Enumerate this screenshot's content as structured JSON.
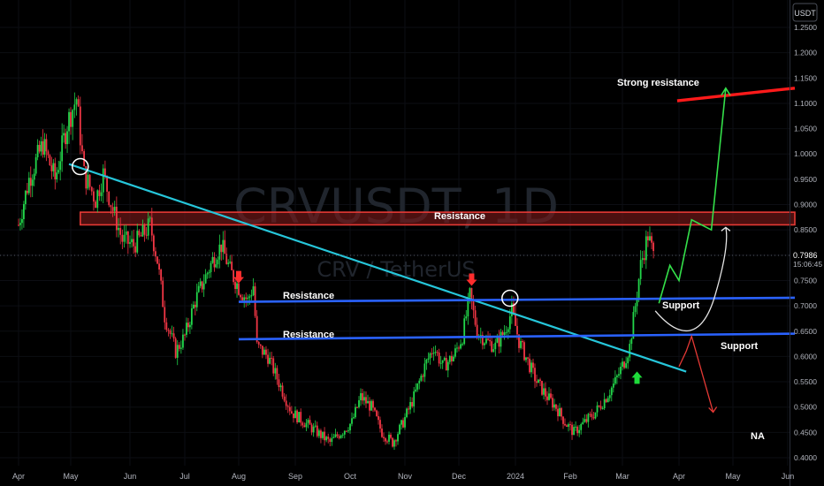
{
  "watermark": {
    "symbol": "CRVUSDT, 1D",
    "pair": "CRV / TetherUS"
  },
  "price_axis": {
    "currency_button": "USDT",
    "last_price": "0.7986",
    "countdown": "15:06:45"
  },
  "annotations": {
    "resistance_band": "Resistance",
    "resistance_upper": "Resistance",
    "resistance_lower": "Resistance",
    "strong_resistance": "Strong resistance",
    "support_upper": "Support",
    "support_lower": "Support",
    "na": "NA"
  },
  "colors": {
    "background": "#000000",
    "up_candle": "#22d64a",
    "down_candle": "#f23645",
    "trendline": "#26c6da",
    "support_line": "#2a62ff",
    "strong_resistance": "#ff1a1a",
    "resistance_zone": "#c62828",
    "axis_text": "#b2b5be"
  },
  "chart_data": {
    "type": "candlestick",
    "symbol": "CRVUSDT",
    "interval": "1D",
    "y_scale": "linear",
    "ylim": [
      0.39,
      1.26
    ],
    "y_ticks": [
      1.25,
      1.2,
      1.15,
      1.1,
      1.05,
      1.0,
      0.95,
      0.9,
      0.85,
      0.8,
      0.75,
      0.7,
      0.65,
      0.6,
      0.55,
      0.5,
      0.45,
      0.4
    ],
    "y_tick_labels": [
      "1.2500",
      "1.2000",
      "1.1500",
      "1.1000",
      "1.0500",
      "1.0000",
      "0.9500",
      "0.9000",
      "0.8500",
      "0.8000",
      "0.7500",
      "0.7000",
      "0.6500",
      "0.6000",
      "0.5500",
      "0.5000",
      "0.4500",
      "0.4000"
    ],
    "x_ticks": [
      "Apr",
      "May",
      "Jun",
      "Jul",
      "Aug",
      "Sep",
      "Oct",
      "Nov",
      "Dec",
      "2024",
      "Feb",
      "Mar",
      "Apr",
      "May",
      "Jun"
    ],
    "last_price": 0.7986,
    "price_path": [
      [
        "2023-04-01",
        0.86
      ],
      [
        "2023-04-07",
        0.95
      ],
      [
        "2023-04-15",
        1.02
      ],
      [
        "2023-04-22",
        0.95
      ],
      [
        "2023-04-29",
        1.06
      ],
      [
        "2023-05-04",
        1.11
      ],
      [
        "2023-05-08",
        0.96
      ],
      [
        "2023-05-14",
        0.91
      ],
      [
        "2023-05-18",
        0.96
      ],
      [
        "2023-05-23",
        0.89
      ],
      [
        "2023-05-28",
        0.83
      ],
      [
        "2023-06-03",
        0.82
      ],
      [
        "2023-06-08",
        0.84
      ],
      [
        "2023-06-12",
        0.86
      ],
      [
        "2023-06-16",
        0.79
      ],
      [
        "2023-06-20",
        0.68
      ],
      [
        "2023-06-26",
        0.61
      ],
      [
        "2023-07-01",
        0.64
      ],
      [
        "2023-07-07",
        0.71
      ],
      [
        "2023-07-12",
        0.75
      ],
      [
        "2023-07-17",
        0.79
      ],
      [
        "2023-07-22",
        0.82
      ],
      [
        "2023-07-27",
        0.77
      ],
      [
        "2023-08-02",
        0.73
      ],
      [
        "2023-08-06",
        0.71
      ],
      [
        "2023-08-09",
        0.74
      ],
      [
        "2023-08-11",
        0.62
      ],
      [
        "2023-08-17",
        0.6
      ],
      [
        "2023-08-24",
        0.54
      ],
      [
        "2023-08-30",
        0.49
      ],
      [
        "2023-09-06",
        0.47
      ],
      [
        "2023-09-13",
        0.45
      ],
      [
        "2023-09-20",
        0.43
      ],
      [
        "2023-09-26",
        0.45
      ],
      [
        "2023-10-02",
        0.47
      ],
      [
        "2023-10-07",
        0.52
      ],
      [
        "2023-10-13",
        0.5
      ],
      [
        "2023-10-19",
        0.45
      ],
      [
        "2023-10-25",
        0.43
      ],
      [
        "2023-10-31",
        0.47
      ],
      [
        "2023-11-06",
        0.52
      ],
      [
        "2023-11-12",
        0.58
      ],
      [
        "2023-11-17",
        0.62
      ],
      [
        "2023-11-22",
        0.58
      ],
      [
        "2023-11-28",
        0.6
      ],
      [
        "2023-12-03",
        0.64
      ],
      [
        "2023-12-07",
        0.72
      ],
      [
        "2023-12-11",
        0.65
      ],
      [
        "2023-12-16",
        0.63
      ],
      [
        "2023-12-21",
        0.62
      ],
      [
        "2023-12-26",
        0.65
      ],
      [
        "2023-12-30",
        0.69
      ],
      [
        "2024-01-03",
        0.63
      ],
      [
        "2024-01-08",
        0.59
      ],
      [
        "2024-01-13",
        0.55
      ],
      [
        "2024-01-19",
        0.52
      ],
      [
        "2024-01-24",
        0.5
      ],
      [
        "2024-01-29",
        0.47
      ],
      [
        "2024-02-03",
        0.45
      ],
      [
        "2024-02-09",
        0.47
      ],
      [
        "2024-02-15",
        0.49
      ],
      [
        "2024-02-21",
        0.52
      ],
      [
        "2024-02-26",
        0.55
      ],
      [
        "2024-03-02",
        0.59
      ],
      [
        "2024-03-05",
        0.62
      ],
      [
        "2024-03-08",
        0.7
      ],
      [
        "2024-03-11",
        0.78
      ],
      [
        "2024-03-15",
        0.84
      ],
      [
        "2024-03-18",
        0.7986
      ]
    ],
    "horizontal_levels": [
      {
        "name": "Strong resistance",
        "from": "2024-03-31",
        "to": "2024-06-05",
        "y_start": 1.105,
        "y_end": 1.13
      },
      {
        "name": "Resistance zone",
        "from": "2023-05-06",
        "to": "2024-06-05",
        "y_low": 0.86,
        "y_high": 0.885
      },
      {
        "name": "Resistance / Support",
        "from": "2023-08-01",
        "to": "2024-06-05",
        "y_start": 0.708,
        "y_end": 0.716
      },
      {
        "name": "Resistance / Support",
        "from": "2023-08-01",
        "to": "2024-06-05",
        "y_start": 0.634,
        "y_end": 0.645
      }
    ],
    "trendline": {
      "from": [
        "2023-04-30",
        0.98
      ],
      "to": [
        "2024-04-05",
        0.57
      ]
    },
    "markers": [
      {
        "type": "circle",
        "date": "2023-05-06",
        "y": 0.975
      },
      {
        "type": "circle",
        "date": "2023-12-29",
        "y": 0.715
      },
      {
        "type": "down-arrow",
        "date": "2023-08-01",
        "y": 0.755
      },
      {
        "type": "down-arrow",
        "date": "2023-12-08",
        "y": 0.75
      },
      {
        "type": "up-arrow",
        "date": "2024-03-09",
        "y": 0.56
      }
    ],
    "projections": [
      {
        "color": "green",
        "points": [
          [
            "2024-03-21",
            0.705
          ],
          [
            "2024-03-27",
            0.78
          ],
          [
            "2024-04-01",
            0.75
          ],
          [
            "2024-04-08",
            0.87
          ],
          [
            "2024-04-19",
            0.85
          ],
          [
            "2024-04-27",
            1.13
          ]
        ]
      },
      {
        "color": "white",
        "points": [
          [
            "2024-03-19",
            0.69
          ],
          [
            "2024-04-02",
            0.645
          ],
          [
            "2024-04-14",
            0.65
          ],
          [
            "2024-04-21",
            0.72
          ],
          [
            "2024-04-27",
            0.855
          ]
        ]
      },
      {
        "color": "red",
        "points": [
          [
            "2024-04-01",
            0.58
          ],
          [
            "2024-04-05",
            0.61
          ],
          [
            "2024-04-08",
            0.64
          ],
          [
            "2024-04-20",
            0.49
          ]
        ]
      }
    ]
  }
}
